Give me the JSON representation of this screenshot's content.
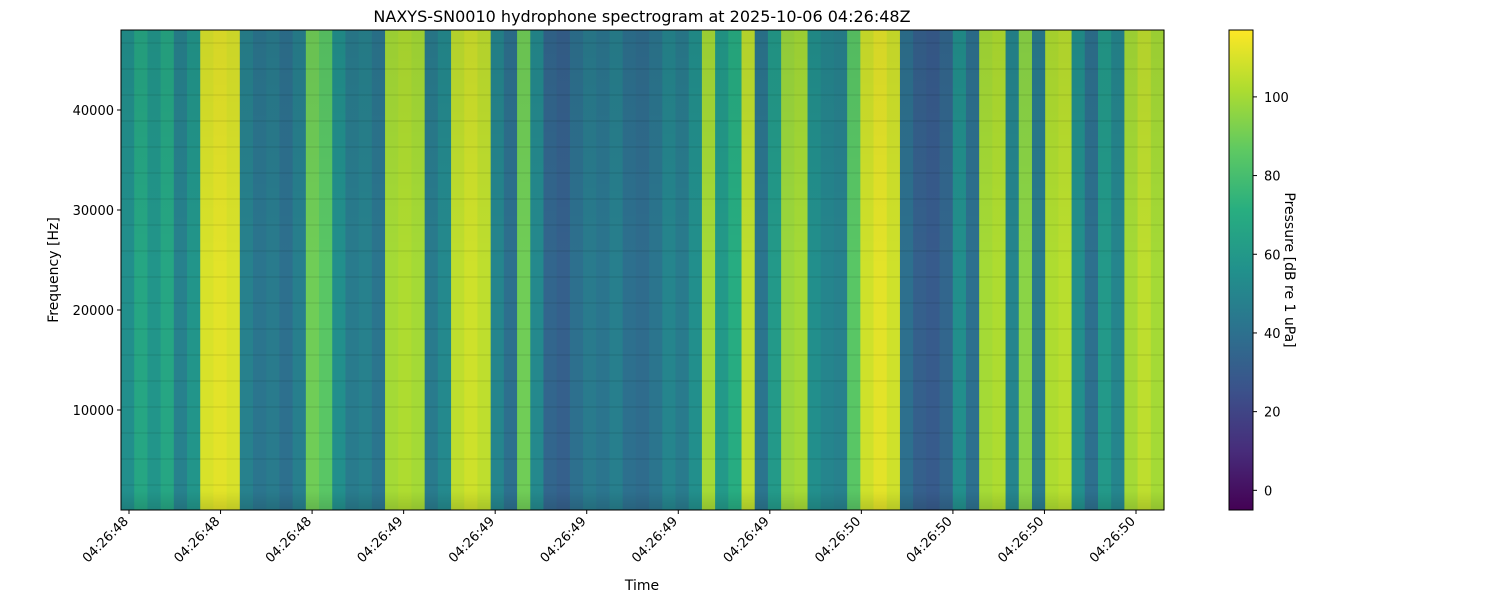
{
  "chart_data": {
    "type": "heatmap",
    "title": "NAXYS-SN0010 hydrophone spectrogram at 2025-10-06 04:26:48Z",
    "xlabel": "Time",
    "ylabel": "Frequency [Hz]",
    "x_tick_labels": [
      "04:26:48",
      "04:26:48",
      "04:26:48",
      "04:26:49",
      "04:26:49",
      "04:26:49",
      "04:26:49",
      "04:26:49",
      "04:26:50",
      "04:26:50",
      "04:26:50",
      "04:26:50"
    ],
    "y_ticks": [
      10000,
      20000,
      30000,
      40000
    ],
    "ylim": [
      0,
      48000
    ],
    "colormap": "viridis",
    "colorbar": {
      "label": "Pressure [dB re 1 uPa]",
      "range": [
        -5,
        117
      ],
      "ticks": [
        0,
        20,
        40,
        60,
        80,
        100
      ]
    },
    "column_levels_db": [
      55,
      67,
      58,
      67,
      48,
      58,
      110,
      112,
      110,
      48,
      42,
      45,
      40,
      47,
      90,
      85,
      55,
      45,
      48,
      42,
      100,
      102,
      100,
      45,
      52,
      105,
      108,
      105,
      50,
      40,
      90,
      52,
      35,
      32,
      40,
      45,
      42,
      47,
      40,
      38,
      42,
      50,
      45,
      55,
      100,
      60,
      70,
      105,
      42,
      60,
      98,
      100,
      55,
      50,
      48,
      85,
      108,
      112,
      108,
      40,
      32,
      30,
      35,
      55,
      40,
      100,
      102,
      50,
      95,
      45,
      102,
      104,
      55,
      40,
      60,
      50,
      100,
      105,
      100
    ]
  }
}
